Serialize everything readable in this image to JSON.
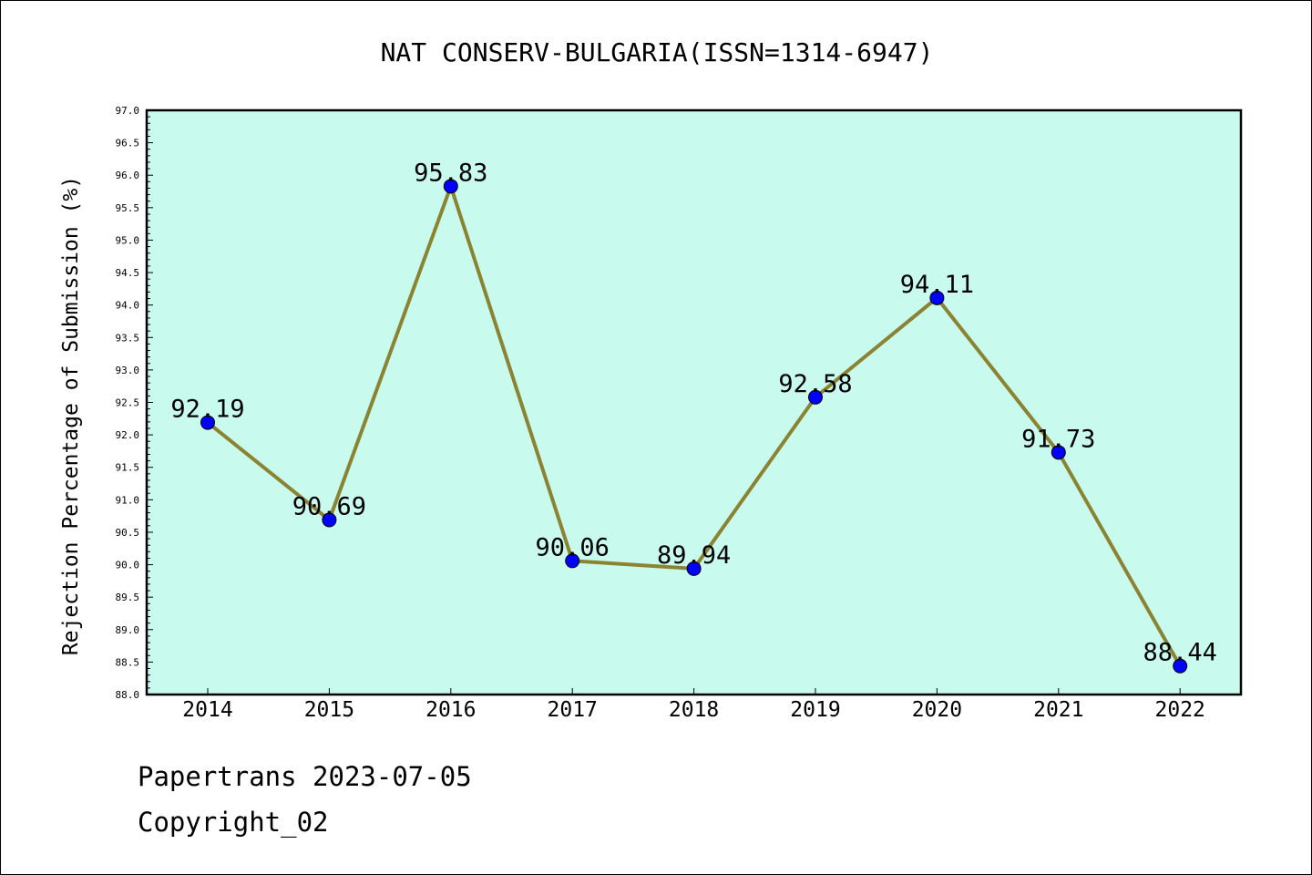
{
  "chart_data": {
    "type": "line",
    "title": "NAT CONSERV-BULGARIA(ISSN=1314-6947)",
    "xlabel": "",
    "ylabel": "Rejection Percentage of Submission (%)",
    "categories": [
      "2014",
      "2015",
      "2016",
      "2017",
      "2018",
      "2019",
      "2020",
      "2021",
      "2022"
    ],
    "series": [
      {
        "values": [
          92.19,
          90.69,
          95.83,
          90.06,
          89.94,
          92.58,
          94.11,
          91.73,
          88.44
        ],
        "labels": [
          "92.19",
          "90.69",
          "95.83",
          "90.06",
          "89.94",
          "92.58",
          "94.11",
          "91.73",
          "88.44"
        ],
        "line_color": "#8b8332",
        "marker_color": "#0000ff"
      }
    ],
    "ylim": [
      88.0,
      97.0
    ],
    "yticks": [
      "88.0",
      "88.5",
      "89.0",
      "89.5",
      "90.0",
      "90.5",
      "91.0",
      "91.5",
      "92.0",
      "92.5",
      "93.0",
      "93.5",
      "94.0",
      "94.5",
      "95.0",
      "95.5",
      "96.0",
      "96.5",
      "97.0"
    ],
    "plot_background": "#c8fbee",
    "grid": false,
    "legend": "none"
  },
  "footer": {
    "date_line": "Papertrans 2023-07-05",
    "copyright_line": "Copyright_02"
  }
}
